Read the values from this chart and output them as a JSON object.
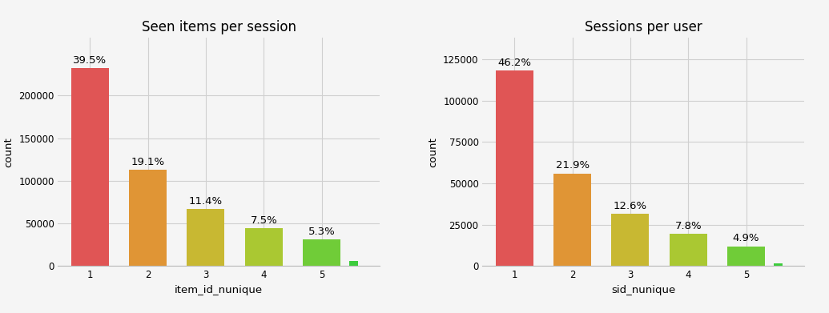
{
  "left": {
    "title": "Seen items per session",
    "xlabel": "item_id_nunique",
    "ylabel": "count",
    "categories": [
      1,
      2,
      3,
      4,
      5,
      5.55
    ],
    "values": [
      232000,
      113000,
      67000,
      44000,
      31000,
      5500
    ],
    "percentages": [
      "39.5%",
      "19.1%",
      "11.4%",
      "7.5%",
      "5.3%",
      ""
    ],
    "colors": [
      "#e05555",
      "#e09535",
      "#c8b832",
      "#aac832",
      "#70cc38",
      "#3dcc3d"
    ],
    "bar_widths": [
      0.65,
      0.65,
      0.65,
      0.65,
      0.65,
      0.15
    ],
    "yticks": [
      0,
      50000,
      100000,
      150000,
      200000
    ],
    "ylim": [
      0,
      268000
    ]
  },
  "right": {
    "title": "Sessions per user",
    "xlabel": "sid_nunique",
    "ylabel": "count",
    "categories": [
      1,
      2,
      3,
      4,
      5,
      5.55
    ],
    "values": [
      118000,
      56000,
      31500,
      19500,
      12000,
      1500
    ],
    "percentages": [
      "46.2%",
      "21.9%",
      "12.6%",
      "7.8%",
      "4.9%",
      ""
    ],
    "colors": [
      "#e05555",
      "#e09535",
      "#c8b832",
      "#aac832",
      "#70cc38",
      "#3dcc3d"
    ],
    "bar_widths": [
      0.65,
      0.65,
      0.65,
      0.65,
      0.65,
      0.15
    ],
    "yticks": [
      0,
      25000,
      50000,
      75000,
      100000,
      125000
    ],
    "ylim": [
      0,
      138000
    ]
  },
  "background_color": "#f5f5f5",
  "grid_color": "#d0d0d0",
  "title_fontsize": 12,
  "label_fontsize": 9.5,
  "tick_fontsize": 8.5,
  "annot_fontsize": 9.5
}
